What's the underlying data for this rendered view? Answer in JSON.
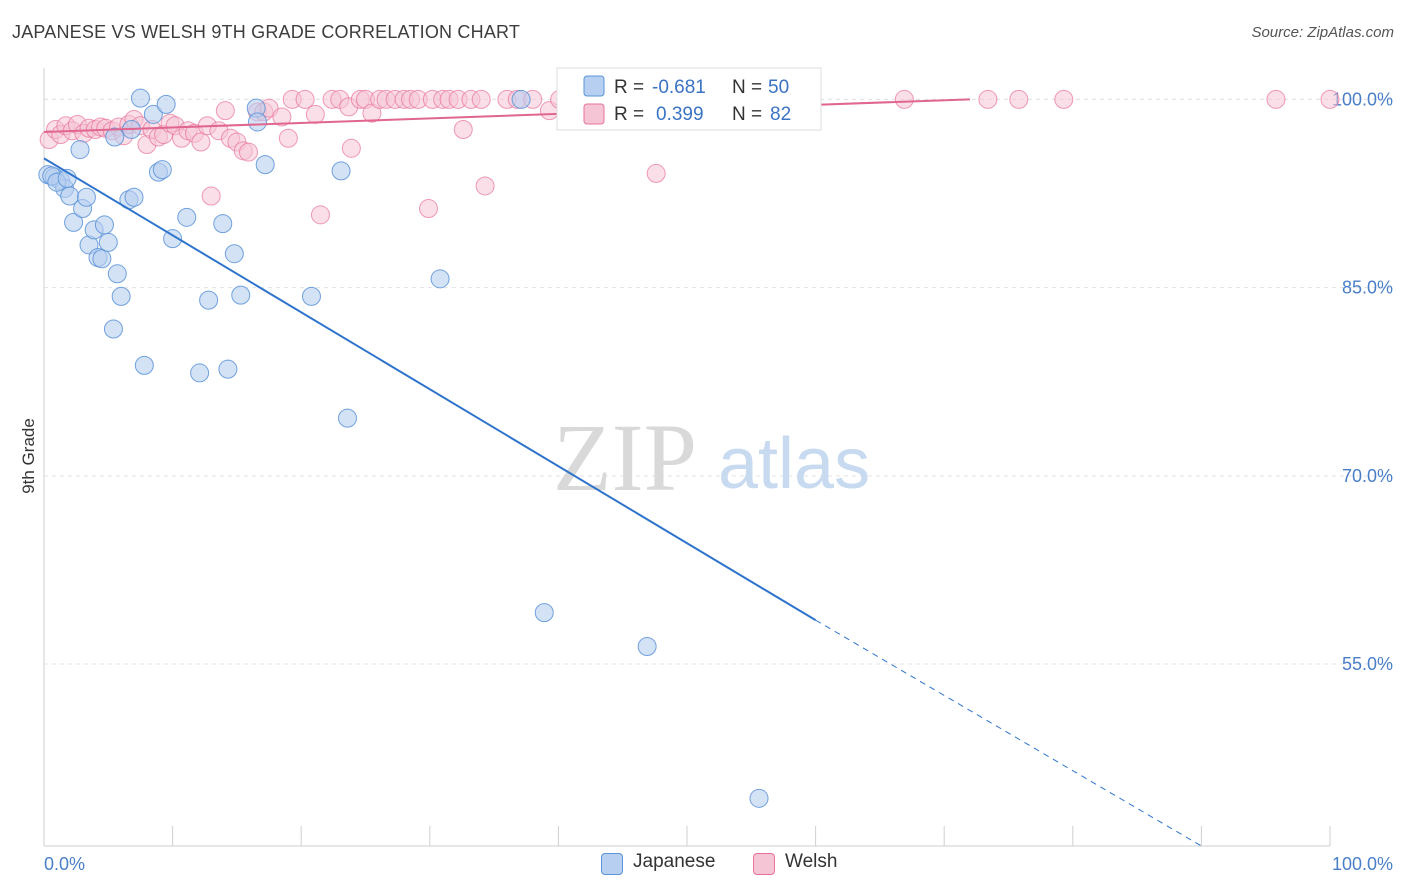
{
  "title": "JAPANESE VS WELSH 9TH GRADE CORRELATION CHART",
  "source": "Source: ZipAtlas.com",
  "watermark": {
    "zip": "ZIP",
    "atlas": "atlas"
  },
  "colors": {
    "japanese": "#5b93d8",
    "japanese_fill": "#b7cff0",
    "welsh": "#e8729a",
    "welsh_fill": "#f6c5d5",
    "tick": "#4a7fc8",
    "grid": "#e3e3e3"
  },
  "legend": {
    "japanese": {
      "r_label": "R = ",
      "r_value": "-0.681",
      "n_label": "N = ",
      "n_value": "50"
    },
    "welsh": {
      "r_label": "R = ",
      "r_value": "0.399",
      "n_label": "N = ",
      "n_value": "82"
    }
  },
  "bottom_legend": {
    "japanese": "Japanese",
    "welsh": "Welsh"
  },
  "chart_data": {
    "type": "scatter",
    "title": "JAPANESE VS WELSH 9TH GRADE CORRELATION CHART",
    "xlabel": "",
    "ylabel": "9th Grade",
    "xlim": [
      0,
      100
    ],
    "ylim": [
      40.5,
      102.5
    ],
    "x_tick_labels": [
      "0.0%",
      "100.0%"
    ],
    "y_ticks": [
      55,
      70,
      85,
      100
    ],
    "y_tick_labels": [
      "55.0%",
      "70.0%",
      "85.0%",
      "100.0%"
    ],
    "grid": true,
    "legend_position": "top-center",
    "series": [
      {
        "name": "Japanese",
        "r": -0.681,
        "n": 50,
        "trend": {
          "x0": 0,
          "y0": 95.3,
          "x1": 60,
          "y1": 58.5,
          "dash_to_x": 90,
          "dash_to_y": 40.5
        },
        "points": [
          [
            0.3,
            94.0
          ],
          [
            0.8,
            93.8
          ],
          [
            1.3,
            93.5
          ],
          [
            1.6,
            92.9
          ],
          [
            2.0,
            92.3
          ],
          [
            2.3,
            90.2
          ],
          [
            2.8,
            96.0
          ],
          [
            3.0,
            91.3
          ],
          [
            3.3,
            92.2
          ],
          [
            3.5,
            88.4
          ],
          [
            3.9,
            89.6
          ],
          [
            4.2,
            87.4
          ],
          [
            4.5,
            87.3
          ],
          [
            4.7,
            90.0
          ],
          [
            5.0,
            88.6
          ],
          [
            5.4,
            81.7
          ],
          [
            5.7,
            86.1
          ],
          [
            6.0,
            84.3
          ],
          [
            5.5,
            97.0
          ],
          [
            6.6,
            92.0
          ],
          [
            7.0,
            92.2
          ],
          [
            6.8,
            97.6
          ],
          [
            7.5,
            100.1
          ],
          [
            7.8,
            78.8
          ],
          [
            8.5,
            98.8
          ],
          [
            8.9,
            94.2
          ],
          [
            9.2,
            94.4
          ],
          [
            9.5,
            99.6
          ],
          [
            10.0,
            88.9
          ],
          [
            11.1,
            90.6
          ],
          [
            12.1,
            78.2
          ],
          [
            12.8,
            84.0
          ],
          [
            13.9,
            90.1
          ],
          [
            14.3,
            78.5
          ],
          [
            14.8,
            87.7
          ],
          [
            15.3,
            84.4
          ],
          [
            16.5,
            99.3
          ],
          [
            16.6,
            98.2
          ],
          [
            17.2,
            94.8
          ],
          [
            20.8,
            84.3
          ],
          [
            23.1,
            94.3
          ],
          [
            23.6,
            74.6
          ],
          [
            30.8,
            85.7
          ],
          [
            37.1,
            100.0
          ],
          [
            38.9,
            59.1
          ],
          [
            46.9,
            56.4
          ],
          [
            55.6,
            44.3
          ],
          [
            0.6,
            93.9
          ],
          [
            1.0,
            93.4
          ],
          [
            1.8,
            93.7
          ]
        ]
      },
      {
        "name": "Welsh",
        "r": 0.399,
        "n": 82,
        "trend": {
          "x0": 0,
          "y0": 97.4,
          "x1": 72,
          "y1": 100.0
        },
        "points": [
          [
            0.4,
            96.8
          ],
          [
            0.9,
            97.6
          ],
          [
            1.3,
            97.2
          ],
          [
            1.7,
            97.9
          ],
          [
            2.2,
            97.5
          ],
          [
            2.6,
            98.0
          ],
          [
            3.1,
            97.3
          ],
          [
            3.5,
            97.7
          ],
          [
            4.0,
            97.6
          ],
          [
            4.4,
            97.8
          ],
          [
            4.8,
            97.7
          ],
          [
            5.3,
            97.5
          ],
          [
            5.8,
            97.8
          ],
          [
            6.2,
            97.1
          ],
          [
            6.6,
            98.0
          ],
          [
            7.0,
            98.4
          ],
          [
            7.5,
            97.9
          ],
          [
            8.0,
            96.4
          ],
          [
            8.4,
            97.6
          ],
          [
            8.9,
            97.0
          ],
          [
            9.3,
            97.2
          ],
          [
            9.8,
            98.1
          ],
          [
            10.2,
            97.9
          ],
          [
            10.7,
            96.9
          ],
          [
            11.2,
            97.5
          ],
          [
            11.7,
            97.3
          ],
          [
            12.2,
            96.6
          ],
          [
            12.7,
            97.9
          ],
          [
            13.0,
            92.3
          ],
          [
            13.6,
            97.5
          ],
          [
            14.1,
            99.1
          ],
          [
            14.5,
            96.9
          ],
          [
            15.0,
            96.6
          ],
          [
            15.5,
            95.9
          ],
          [
            15.9,
            95.8
          ],
          [
            16.6,
            99.0
          ],
          [
            17.1,
            99.0
          ],
          [
            17.5,
            99.3
          ],
          [
            18.5,
            98.6
          ],
          [
            19.0,
            96.9
          ],
          [
            19.3,
            100.0
          ],
          [
            20.3,
            100.0
          ],
          [
            21.1,
            98.8
          ],
          [
            21.5,
            90.8
          ],
          [
            22.4,
            100.0
          ],
          [
            23.0,
            100.0
          ],
          [
            23.7,
            99.4
          ],
          [
            23.9,
            96.1
          ],
          [
            24.6,
            100.0
          ],
          [
            25.0,
            100.0
          ],
          [
            25.5,
            98.9
          ],
          [
            26.1,
            100.0
          ],
          [
            26.6,
            100.0
          ],
          [
            27.3,
            100.0
          ],
          [
            28.0,
            100.0
          ],
          [
            28.5,
            100.0
          ],
          [
            29.1,
            100.0
          ],
          [
            30.2,
            100.0
          ],
          [
            29.9,
            91.3
          ],
          [
            31.0,
            100.0
          ],
          [
            31.5,
            100.0
          ],
          [
            32.2,
            100.0
          ],
          [
            32.6,
            97.6
          ],
          [
            33.2,
            100.0
          ],
          [
            34.0,
            100.0
          ],
          [
            34.3,
            93.1
          ],
          [
            36.0,
            100.0
          ],
          [
            36.8,
            100.0
          ],
          [
            38.0,
            100.0
          ],
          [
            39.3,
            99.1
          ],
          [
            40.1,
            100.0
          ],
          [
            43.0,
            100.0
          ],
          [
            44.3,
            100.0
          ],
          [
            46.4,
            100.0
          ],
          [
            47.6,
            94.1
          ],
          [
            51.8,
            100.0
          ],
          [
            66.9,
            100.0
          ],
          [
            73.4,
            100.0
          ],
          [
            75.8,
            100.0
          ],
          [
            79.3,
            100.0
          ],
          [
            95.8,
            100.0
          ],
          [
            100.0,
            100.0
          ]
        ]
      }
    ]
  }
}
